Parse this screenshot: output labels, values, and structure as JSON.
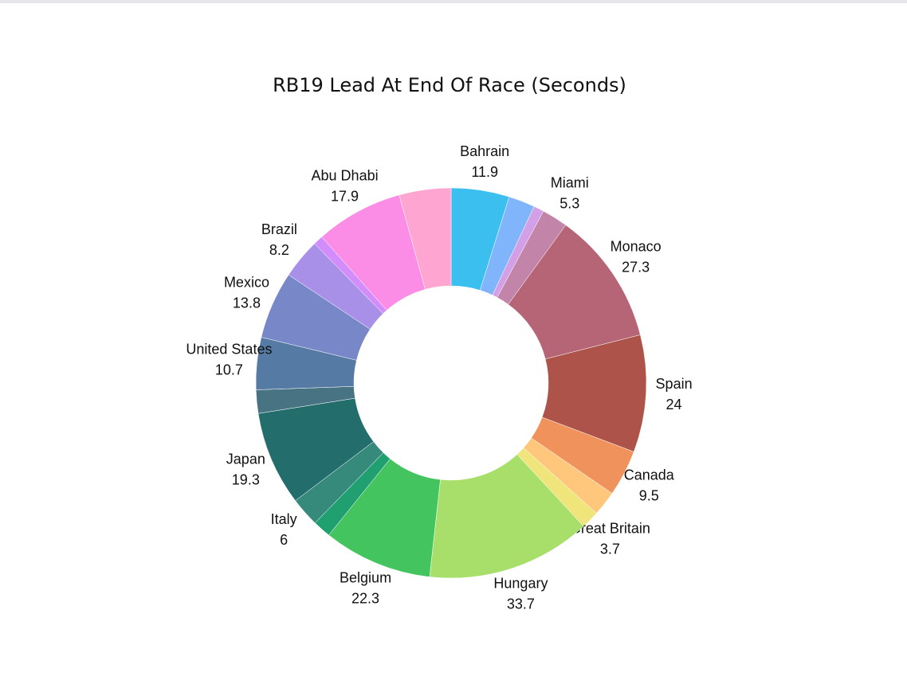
{
  "chart_data": {
    "type": "donut",
    "title": "RB19 Lead At End Of Race (Seconds)",
    "categories": [
      "Bahrain",
      null,
      null,
      "Miami",
      "Monaco",
      "Spain",
      "Canada",
      null,
      "Great Britain",
      "Hungary",
      "Belgium",
      null,
      "Italy",
      "Japan",
      null,
      "United States",
      "Mexico",
      "Brazil",
      null,
      "Abu Dhabi",
      null
    ],
    "values": [
      11.9,
      5.4,
      2.1,
      5.3,
      27.3,
      24,
      9.5,
      5.1,
      3.7,
      33.7,
      22.3,
      3.7,
      6,
      19.3,
      4.8,
      10.7,
      13.8,
      8.2,
      2,
      17.9,
      10.6
    ],
    "colors": [
      "#3bbfef",
      "#80b5fb",
      "#d3a0e8",
      "#c284a8",
      "#b56576",
      "#ad5349",
      "#f0925c",
      "#fec77b",
      "#efe57b",
      "#a8df6b",
      "#44c45e",
      "#20a070",
      "#358a7c",
      "#236d6d",
      "#477382",
      "#557ba4",
      "#7887c8",
      "#a890e8",
      "#d38cfb",
      "#fc8de6",
      "#fea6d1"
    ]
  }
}
